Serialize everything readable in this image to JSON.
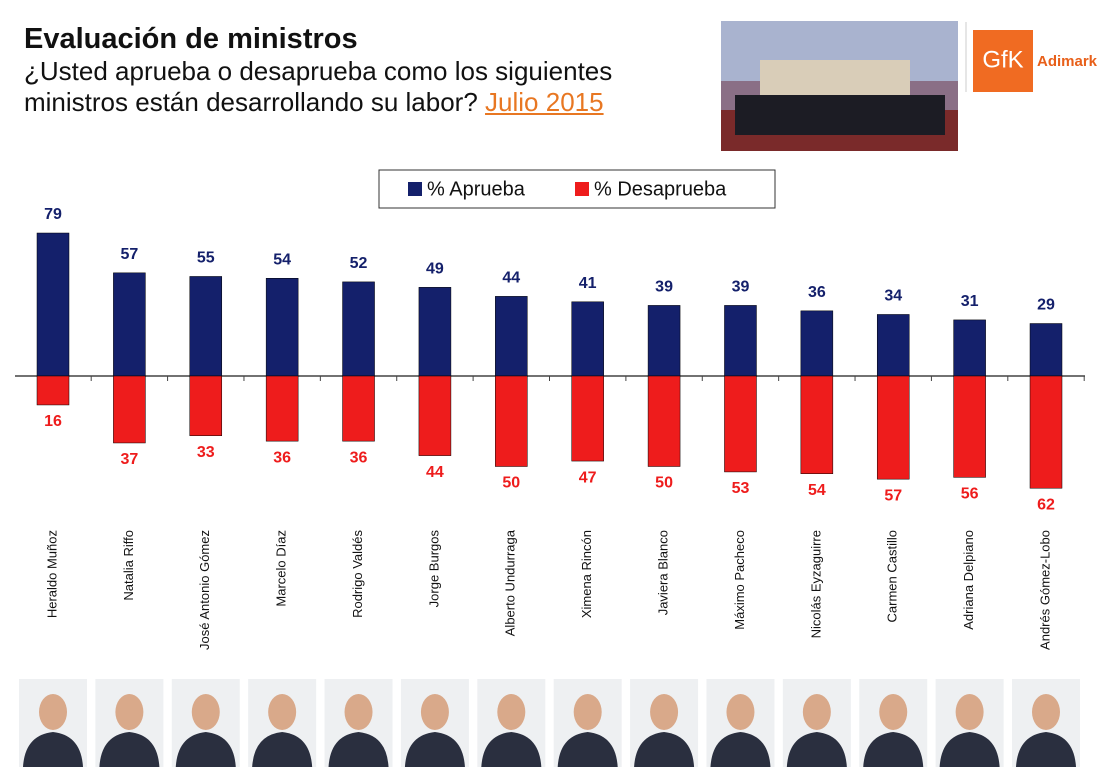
{
  "chart_data": {
    "type": "diverging-bar",
    "title": "Evaluación de ministros",
    "subtitle": "¿Usted aprueba o desaprueba como los siguientes ministros están desarrollando su labor?",
    "date": "Julio 2015",
    "logo": "GfK",
    "logo_text": "Adimark",
    "categories": [
      "Heraldo Muñoz",
      "Natalia Riffo",
      "José Antonio Gómez",
      "Marcelo Díaz",
      "Rodrigo Valdés",
      "Jorge Burgos",
      "Alberto Undurraga",
      "Ximena Rincón",
      "Javiera Blanco",
      "Máximo Pacheco",
      "Nicolás Eyzaguirre",
      "Carmen Castillo",
      "Adriana Delpiano",
      "Andrés Gómez-Lobo"
    ],
    "series": [
      {
        "name": "% Aprueba",
        "color": "#14206b",
        "values": [
          79,
          57,
          55,
          54,
          52,
          49,
          44,
          41,
          39,
          39,
          36,
          34,
          31,
          29
        ]
      },
      {
        "name": "% Desaprueba",
        "color": "#ee1c1c",
        "values": [
          16,
          37,
          33,
          36,
          36,
          44,
          50,
          47,
          50,
          53,
          54,
          57,
          56,
          62
        ]
      }
    ],
    "legend": "top"
  }
}
